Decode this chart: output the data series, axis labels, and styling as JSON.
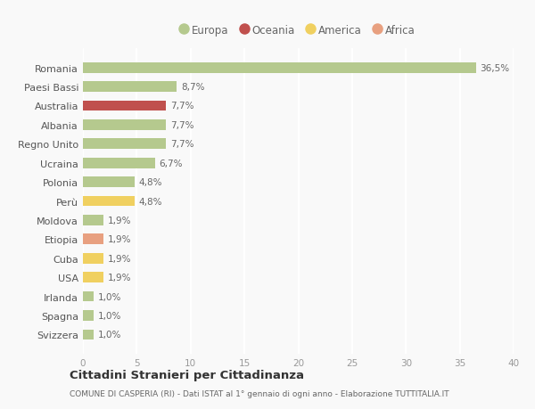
{
  "countries": [
    "Romania",
    "Paesi Bassi",
    "Australia",
    "Albania",
    "Regno Unito",
    "Ucraina",
    "Polonia",
    "Perù",
    "Moldova",
    "Etiopia",
    "Cuba",
    "USA",
    "Irlanda",
    "Spagna",
    "Svizzera"
  ],
  "values": [
    36.5,
    8.7,
    7.7,
    7.7,
    7.7,
    6.7,
    4.8,
    4.8,
    1.9,
    1.9,
    1.9,
    1.9,
    1.0,
    1.0,
    1.0
  ],
  "labels": [
    "36,5%",
    "8,7%",
    "7,7%",
    "7,7%",
    "7,7%",
    "6,7%",
    "4,8%",
    "4,8%",
    "1,9%",
    "1,9%",
    "1,9%",
    "1,9%",
    "1,0%",
    "1,0%",
    "1,0%"
  ],
  "colors": [
    "#b5c98e",
    "#b5c98e",
    "#c0504d",
    "#b5c98e",
    "#b5c98e",
    "#b5c98e",
    "#b5c98e",
    "#f0d060",
    "#b5c98e",
    "#e8a080",
    "#f0d060",
    "#f0d060",
    "#b5c98e",
    "#b5c98e",
    "#b5c98e"
  ],
  "legend": [
    {
      "label": "Europa",
      "color": "#b5c98e"
    },
    {
      "label": "Oceania",
      "color": "#c0504d"
    },
    {
      "label": "America",
      "color": "#f0d060"
    },
    {
      "label": "Africa",
      "color": "#e8a080"
    }
  ],
  "xlim": [
    0,
    40
  ],
  "xticks": [
    0,
    5,
    10,
    15,
    20,
    25,
    30,
    35,
    40
  ],
  "title": "Cittadini Stranieri per Cittadinanza",
  "subtitle": "COMUNE DI CASPERIA (RI) - Dati ISTAT al 1° gennaio di ogni anno - Elaborazione TUTTITALIA.IT",
  "background_color": "#f9f9f9",
  "grid_color": "#ffffff",
  "bar_height": 0.55,
  "label_fontsize": 7.5,
  "ytick_fontsize": 8,
  "xtick_fontsize": 7.5
}
